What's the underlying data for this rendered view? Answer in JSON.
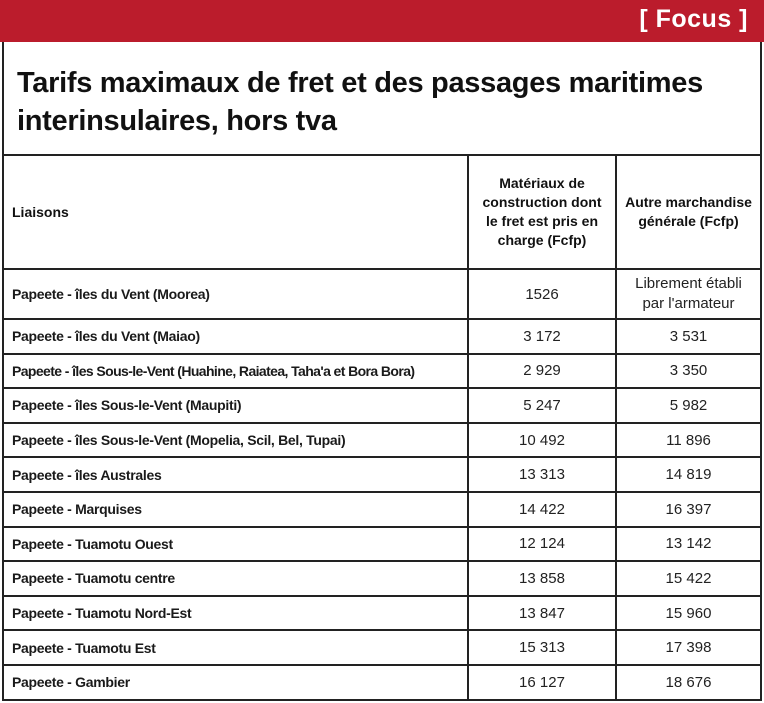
{
  "banner": {
    "label": "[ Focus ]",
    "color": "#bb1c2c"
  },
  "title": "Tarifs maximaux de fret et des passages maritimes interinsulaires, hors tva",
  "table": {
    "headers": {
      "route": "Liaisons",
      "materials": "Matériaux de construction dont le fret est pris en charge (Fcfp)",
      "other": "Autre marchandise générale (Fcfp)"
    },
    "rows": [
      {
        "route": "Papeete - îles du Vent (Moorea)",
        "materials": "1526",
        "other": "Librement établi par l'armateur"
      },
      {
        "route": "Papeete - îles du Vent (Maiao)",
        "materials": "3 172",
        "other": "3 531"
      },
      {
        "route": "Papeete - îles Sous-le-Vent (Huahine, Raiatea, Taha'a et Bora Bora)",
        "materials": "2 929",
        "other": "3 350"
      },
      {
        "route": "Papeete - îles Sous-le-Vent (Maupiti)",
        "materials": "5 247",
        "other": "5 982"
      },
      {
        "route": "Papeete - îles Sous-le-Vent (Mopelia, Scil, Bel, Tupai)",
        "materials": "10 492",
        "other": "11 896"
      },
      {
        "route": "Papeete - îles Australes",
        "materials": "13 313",
        "other": "14 819"
      },
      {
        "route": "Papeete - Marquises",
        "materials": "14 422",
        "other": "16 397"
      },
      {
        "route": "Papeete - Tuamotu Ouest",
        "materials": "12 124",
        "other": "13 142"
      },
      {
        "route": "Papeete - Tuamotu centre",
        "materials": "13 858",
        "other": "15 422"
      },
      {
        "route": "Papeete - Tuamotu Nord-Est",
        "materials": "13 847",
        "other": "15 960"
      },
      {
        "route": "Papeete - Tuamotu Est",
        "materials": "15 313",
        "other": "17 398"
      },
      {
        "route": "Papeete - Gambier",
        "materials": "16 127",
        "other": "18 676"
      }
    ]
  }
}
